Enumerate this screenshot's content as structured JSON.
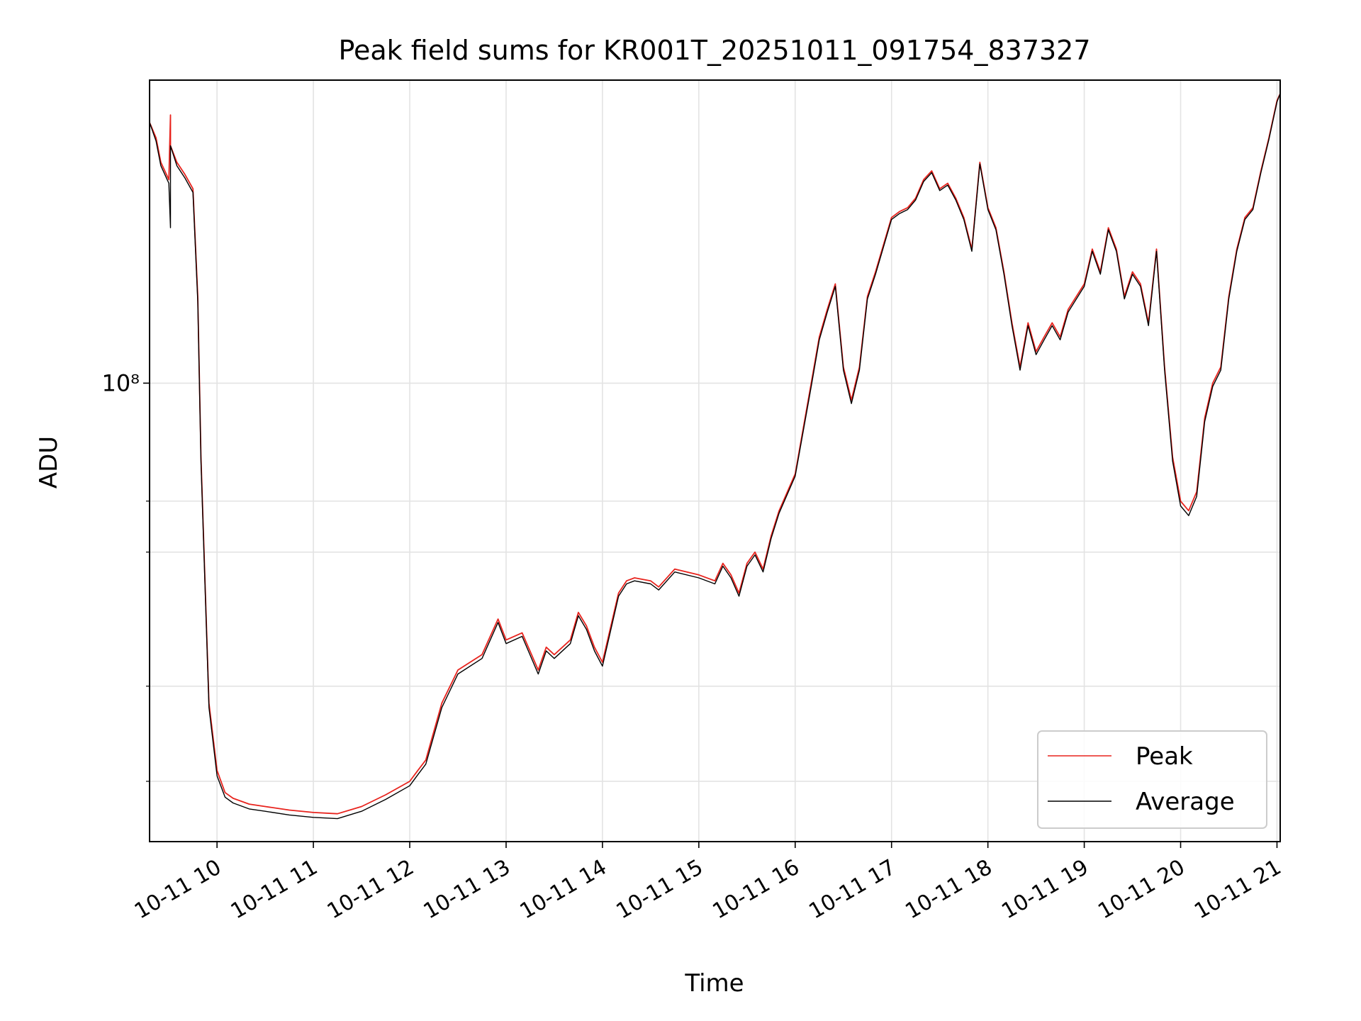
{
  "chart_data": {
    "type": "line",
    "title": "Peak field sums for KR001T_20251011_091754_837327",
    "xlabel": "Time",
    "ylabel": "ADU",
    "y_scale": "log",
    "xlim": [
      "2025-10-11 09:18",
      "2025-10-11 21:02"
    ],
    "ylim": [
      25000000,
      250000000
    ],
    "x_tick_labels": [
      "10-11 10",
      "10-11 11",
      "10-11 12",
      "10-11 13",
      "10-11 14",
      "10-11 15",
      "10-11 16",
      "10-11 17",
      "10-11 18",
      "10-11 19",
      "10-11 20",
      "10-11 21"
    ],
    "x_ticks": [
      "2025-10-11 10:00",
      "2025-10-11 11:00",
      "2025-10-11 12:00",
      "2025-10-11 13:00",
      "2025-10-11 14:00",
      "2025-10-11 15:00",
      "2025-10-11 16:00",
      "2025-10-11 17:00",
      "2025-10-11 18:00",
      "2025-10-11 19:00",
      "2025-10-11 20:00",
      "2025-10-11 21:00"
    ],
    "y_major_tick": {
      "value": 100000000,
      "label": "10⁸"
    },
    "y_minor_ticks": [
      30000000,
      40000000,
      60000000,
      70000000
    ],
    "grid": true,
    "legend_position": "lower-right",
    "series": [
      {
        "name": "Peak",
        "color": "#e8231d",
        "x": [
          "09:18",
          "09:22",
          "09:25",
          "09:30",
          "09:31",
          "09:31",
          "09:35",
          "09:40",
          "09:45",
          "09:48",
          "09:50",
          "09:55",
          "10:00",
          "10:05",
          "10:10",
          "10:20",
          "10:30",
          "10:45",
          "11:00",
          "11:15",
          "11:30",
          "11:45",
          "12:00",
          "12:05",
          "12:10",
          "12:20",
          "12:30",
          "12:45",
          "12:55",
          "13:00",
          "13:10",
          "13:20",
          "13:25",
          "13:30",
          "13:40",
          "13:45",
          "13:50",
          "13:55",
          "14:00",
          "14:10",
          "14:15",
          "14:20",
          "14:30",
          "14:35",
          "14:45",
          "15:00",
          "15:10",
          "15:15",
          "15:20",
          "15:25",
          "15:30",
          "15:35",
          "15:40",
          "15:45",
          "15:50",
          "16:00",
          "16:10",
          "16:15",
          "16:20",
          "16:25",
          "16:30",
          "16:35",
          "16:40",
          "16:45",
          "16:50",
          "17:00",
          "17:05",
          "17:10",
          "17:15",
          "17:20",
          "17:25",
          "17:30",
          "17:35",
          "17:40",
          "17:45",
          "17:50",
          "17:55",
          "18:00",
          "18:05",
          "18:10",
          "18:15",
          "18:20",
          "18:25",
          "18:30",
          "18:35",
          "18:40",
          "18:45",
          "18:50",
          "19:00",
          "19:05",
          "19:10",
          "19:15",
          "19:20",
          "19:25",
          "19:30",
          "19:35",
          "19:40",
          "19:45",
          "19:50",
          "19:55",
          "20:00",
          "20:05",
          "20:10",
          "20:15",
          "20:20",
          "20:25",
          "20:30",
          "20:35",
          "20:40",
          "20:45",
          "20:50",
          "20:55",
          "21:00",
          "21:02"
        ],
        "y": [
          220000000,
          210000000,
          195000000,
          185000000,
          225000000,
          205000000,
          195000000,
          188000000,
          180000000,
          130000000,
          80000000,
          38000000,
          31000000,
          29000000,
          28500000,
          28000000,
          27800000,
          27500000,
          27300000,
          27200000,
          27800000,
          28800000,
          30000000,
          31000000,
          32000000,
          38000000,
          42000000,
          44000000,
          49000000,
          46000000,
          47000000,
          42000000,
          45000000,
          44000000,
          46000000,
          50000000,
          48000000,
          45000000,
          43000000,
          53000000,
          55000000,
          55500000,
          55000000,
          54000000,
          57000000,
          56000000,
          55000000,
          58000000,
          56000000,
          53000000,
          58000000,
          60000000,
          57000000,
          63000000,
          68000000,
          76000000,
          100000000,
          115000000,
          125000000,
          135000000,
          105000000,
          95000000,
          105000000,
          130000000,
          140000000,
          165000000,
          168000000,
          170000000,
          175000000,
          185000000,
          190000000,
          180000000,
          183000000,
          175000000,
          165000000,
          150000000,
          195000000,
          170000000,
          160000000,
          140000000,
          120000000,
          105000000,
          120000000,
          110000000,
          115000000,
          120000000,
          115000000,
          125000000,
          135000000,
          150000000,
          140000000,
          160000000,
          150000000,
          130000000,
          140000000,
          135000000,
          120000000,
          150000000,
          105000000,
          80000000,
          70000000,
          68000000,
          72000000,
          90000000,
          100000000,
          105000000,
          130000000,
          150000000,
          165000000,
          170000000,
          190000000,
          210000000,
          235000000,
          240000000
        ]
      },
      {
        "name": "Average",
        "color": "#000000",
        "x": [
          "09:18",
          "09:22",
          "09:25",
          "09:30",
          "09:31",
          "09:31",
          "09:35",
          "09:40",
          "09:45",
          "09:48",
          "09:50",
          "09:55",
          "10:00",
          "10:05",
          "10:10",
          "10:20",
          "10:30",
          "10:45",
          "11:00",
          "11:15",
          "11:30",
          "11:45",
          "12:00",
          "12:05",
          "12:10",
          "12:20",
          "12:30",
          "12:45",
          "12:55",
          "13:00",
          "13:10",
          "13:20",
          "13:25",
          "13:30",
          "13:40",
          "13:45",
          "13:50",
          "13:55",
          "14:00",
          "14:10",
          "14:15",
          "14:20",
          "14:30",
          "14:35",
          "14:45",
          "15:00",
          "15:10",
          "15:15",
          "15:20",
          "15:25",
          "15:30",
          "15:35",
          "15:40",
          "15:45",
          "15:50",
          "16:00",
          "16:10",
          "16:15",
          "16:20",
          "16:25",
          "16:30",
          "16:35",
          "16:40",
          "16:45",
          "16:50",
          "17:00",
          "17:05",
          "17:10",
          "17:15",
          "17:20",
          "17:25",
          "17:30",
          "17:35",
          "17:40",
          "17:45",
          "17:50",
          "17:55",
          "18:00",
          "18:05",
          "18:10",
          "18:15",
          "18:20",
          "18:25",
          "18:30",
          "18:35",
          "18:40",
          "18:45",
          "18:50",
          "19:00",
          "19:05",
          "19:10",
          "19:15",
          "19:20",
          "19:25",
          "19:30",
          "19:35",
          "19:40",
          "19:45",
          "19:50",
          "19:55",
          "20:00",
          "20:05",
          "20:10",
          "20:15",
          "20:20",
          "20:25",
          "20:30",
          "20:35",
          "20:40",
          "20:45",
          "20:50",
          "20:55",
          "21:00",
          "21:02"
        ],
        "y": [
          220000000,
          208000000,
          193000000,
          183000000,
          160000000,
          205000000,
          193000000,
          186000000,
          178000000,
          128000000,
          79000000,
          37500000,
          30500000,
          28600000,
          28100000,
          27600000,
          27400000,
          27100000,
          26900000,
          26800000,
          27400000,
          28400000,
          29600000,
          30600000,
          31600000,
          37500000,
          41500000,
          43500000,
          48500000,
          45500000,
          46500000,
          41500000,
          44500000,
          43500000,
          45500000,
          49500000,
          47500000,
          44500000,
          42500000,
          52500000,
          54500000,
          55000000,
          54500000,
          53500000,
          56500000,
          55500000,
          54500000,
          57500000,
          55500000,
          52500000,
          57500000,
          59500000,
          56500000,
          62500000,
          67500000,
          75500000,
          99000000,
          114000000,
          124000000,
          134000000,
          104000000,
          94000000,
          104000000,
          129000000,
          139000000,
          164000000,
          167000000,
          169000000,
          174000000,
          184000000,
          189000000,
          179000000,
          182000000,
          174000000,
          164000000,
          149000000,
          194000000,
          169000000,
          159000000,
          139000000,
          119000000,
          104000000,
          119000000,
          109000000,
          114000000,
          119000000,
          114000000,
          124000000,
          134000000,
          149000000,
          139000000,
          159000000,
          149000000,
          129000000,
          139000000,
          134000000,
          119000000,
          149000000,
          104000000,
          79000000,
          69000000,
          67000000,
          71000000,
          89000000,
          99000000,
          104000000,
          129000000,
          149000000,
          164000000,
          169000000,
          189000000,
          209000000,
          234000000,
          240000000
        ]
      }
    ]
  }
}
